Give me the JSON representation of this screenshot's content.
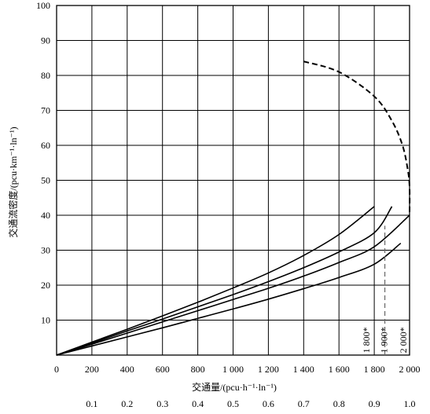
{
  "chart_data": {
    "type": "line",
    "xlabel": "交通量/(pcu·h⁻¹·ln⁻¹)",
    "ylabel": "交通流密度/(pcu·km⁻¹·ln⁻¹)",
    "xlim": [
      0,
      2000
    ],
    "ylim": [
      0,
      100
    ],
    "x_ticks": [
      0,
      200,
      400,
      600,
      800,
      1000,
      1200,
      1400,
      1600,
      1800,
      2000
    ],
    "x_tick_labels": [
      "0",
      "200",
      "400",
      "600",
      "800",
      "1 000",
      "1 200",
      "1 400",
      "1 600",
      "1 800",
      "2 000"
    ],
    "y_ticks": [
      10,
      20,
      30,
      40,
      50,
      60,
      70,
      80,
      90,
      100
    ],
    "y_tick_labels": [
      "10",
      "20",
      "30",
      "40",
      "50",
      "60",
      "70",
      "80",
      "90",
      "100"
    ],
    "secondary_x_ticks": [
      0.1,
      0.2,
      0.3,
      0.4,
      0.5,
      0.6,
      0.7,
      0.8,
      0.9,
      1.0
    ],
    "secondary_x_labels": [
      "0.1",
      "0.2",
      "0.3",
      "0.4",
      "0.5",
      "0.6",
      "0.7",
      "0.8",
      "0.9",
      "1.0"
    ],
    "grid": true,
    "series": [
      {
        "x": [
          0,
          200,
          400,
          600,
          800,
          1000,
          1200,
          1400,
          1600,
          1800
        ],
        "y": [
          0,
          3.7,
          7.4,
          11.2,
          15.1,
          19.2,
          23.5,
          28.5,
          34.5,
          42.5
        ]
      },
      {
        "x": [
          0,
          200,
          400,
          600,
          800,
          1000,
          1200,
          1400,
          1600,
          1800,
          1900
        ],
        "y": [
          0,
          3.4,
          6.9,
          10.3,
          13.8,
          17.3,
          21.0,
          25.0,
          29.5,
          35.0,
          42.5
        ]
      },
      {
        "x": [
          0,
          200,
          400,
          600,
          800,
          1000,
          1200,
          1400,
          1600,
          1800,
          2000
        ],
        "y": [
          0,
          3.1,
          6.3,
          9.5,
          12.7,
          15.9,
          19.1,
          22.6,
          26.5,
          31.0,
          40.0
        ]
      },
      {
        "x": [
          0,
          200,
          400,
          600,
          800,
          1000,
          1200,
          1400,
          1600,
          1800,
          1950
        ],
        "y": [
          0,
          2.6,
          5.2,
          7.8,
          10.5,
          13.2,
          16.0,
          19.0,
          22.2,
          26.0,
          32.0
        ]
      },
      {
        "x": [
          1400,
          1600,
          1800,
          1900,
          1960,
          1990,
          2000,
          2000
        ],
        "y": [
          84,
          81,
          74,
          67,
          60,
          53,
          48,
          40
        ],
        "dashed": true
      }
    ],
    "annotations": [
      {
        "text": "1 800*",
        "x": 1800
      },
      {
        "text": "1 900*",
        "x": 1900
      },
      {
        "text": "2 000*",
        "x": 2000
      }
    ],
    "reference_line": {
      "x": 1860,
      "y": [
        0,
        37
      ]
    }
  }
}
